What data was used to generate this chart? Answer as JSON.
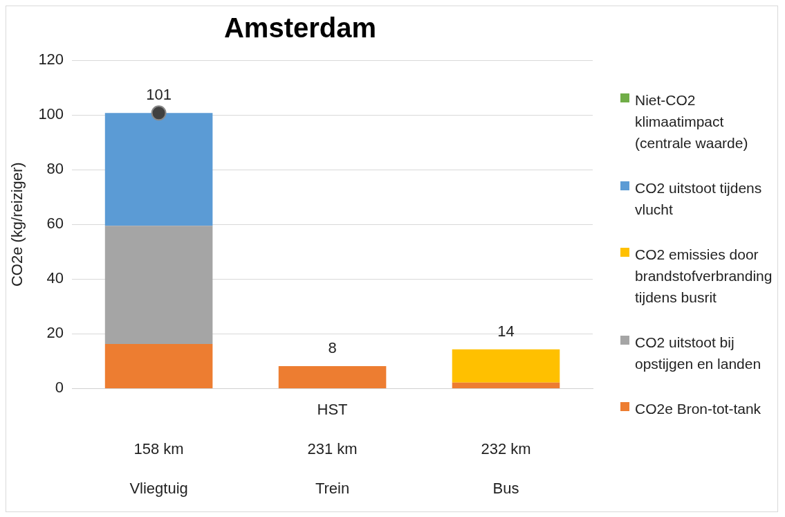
{
  "chart_data": {
    "type": "bar",
    "title": "Amsterdam",
    "ylabel": "CO2e (kg/reiziger)",
    "categories": [
      "\n158 km\nVliegtuig",
      "HST\n231 km\nTrein",
      "\n232 km\nBus"
    ],
    "stacked": true,
    "ylim": [
      0,
      120
    ],
    "yticks": [
      0,
      20,
      40,
      60,
      80,
      100,
      120
    ],
    "grid": "y",
    "legend": "right",
    "totals": [
      "101",
      "8",
      "14"
    ],
    "series": [
      {
        "name": "CO2e Bron-tot-tank",
        "color": "#ed7d31",
        "values": [
          16.3,
          8.2,
          2.2
        ]
      },
      {
        "name": "CO2 uitstoot bij opstijgen en landen",
        "color": "#a5a5a5",
        "values": [
          43.2,
          0,
          0
        ]
      },
      {
        "name": "CO2 emissies door brandstofverbranding tijdens busrit",
        "color": "#ffc000",
        "values": [
          0,
          0,
          12.1
        ]
      },
      {
        "name": "CO2 uitstoot tijdens vlucht",
        "color": "#5b9bd5",
        "values": [
          41.2,
          0,
          0
        ]
      },
      {
        "name": "Niet-CO2 klimaatimpact (centrale waarde)",
        "color": "#70ad47",
        "values": [
          0,
          0,
          0
        ]
      },
      {
        "type": "scatter",
        "color": "#404040",
        "marker": "circle",
        "x": [
          "\n158 km\nVliegtuig"
        ],
        "values": [
          100.7
        ]
      }
    ]
  }
}
